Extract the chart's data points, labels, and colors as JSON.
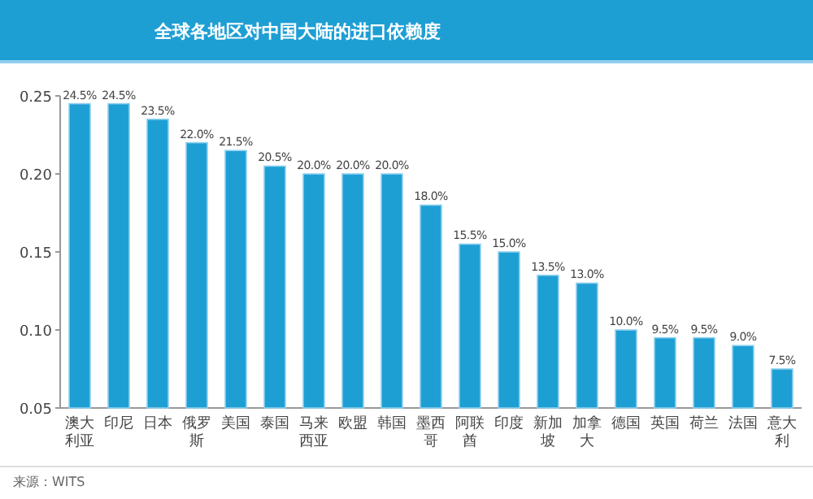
{
  "chart_data": {
    "type": "bar",
    "title": "全球各地区对中国大陆的进口依赖度",
    "categories": [
      "澳大利亚",
      "印尼",
      "日本",
      "俄罗斯",
      "美国",
      "泰国",
      "马来西亚",
      "欧盟",
      "韩国",
      "墨西哥",
      "阿联酋",
      "印度",
      "新加坡",
      "加拿大",
      "德国",
      "英国",
      "荷兰",
      "法国",
      "意大利"
    ],
    "values": [
      0.245,
      0.245,
      0.235,
      0.22,
      0.215,
      0.205,
      0.2,
      0.2,
      0.2,
      0.18,
      0.155,
      0.15,
      0.135,
      0.13,
      0.1,
      0.095,
      0.095,
      0.09,
      0.075
    ],
    "value_labels": [
      "24.5%",
      "24.5%",
      "23.5%",
      "22.0%",
      "21.5%",
      "20.5%",
      "20.0%",
      "20.0%",
      "20.0%",
      "18.0%",
      "15.5%",
      "15.0%",
      "13.5%",
      "13.0%",
      "10.0%",
      "9.5%",
      "9.5%",
      "9.0%",
      "7.5%"
    ],
    "color": "#1e9fd4",
    "ylim": [
      0.05,
      0.25
    ],
    "yticks": [
      {
        "value": 0.05,
        "label": "0.05"
      },
      {
        "value": 0.1,
        "label": "0.10"
      },
      {
        "value": 0.15,
        "label": "0.15"
      },
      {
        "value": 0.2,
        "label": "0.20"
      },
      {
        "value": 0.25,
        "label": "0.25"
      }
    ],
    "grid": false,
    "annotations": [
      "来源：WITS"
    ]
  }
}
